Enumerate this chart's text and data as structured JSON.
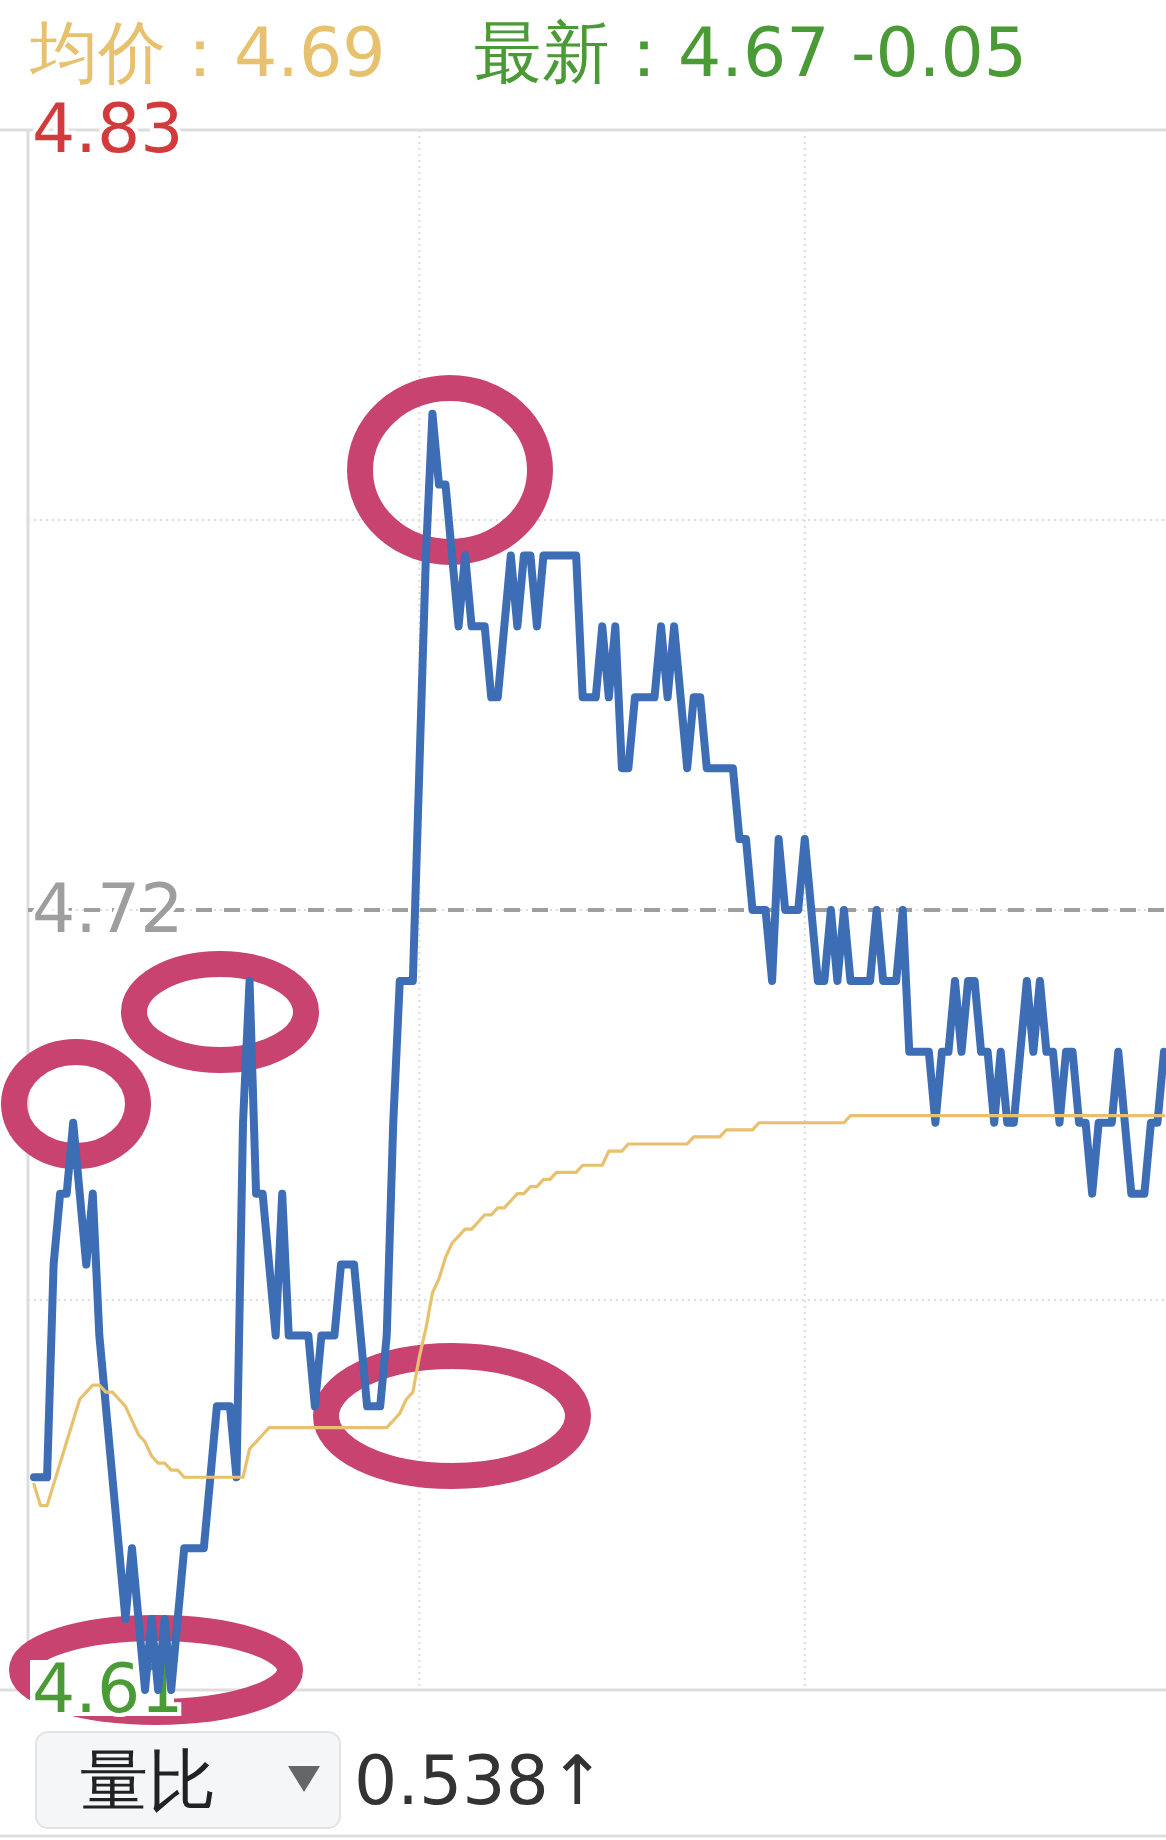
{
  "chart_data": {
    "type": "line",
    "annotations": [
      "均价：4.69",
      "最新：4.67 -0.05",
      "量比",
      "0.538↑"
    ],
    "categories": [
      null,
      null,
      null,
      null,
      null,
      null,
      null,
      null,
      null,
      null,
      null,
      null,
      null,
      null,
      null,
      null,
      null,
      null,
      null,
      null,
      null,
      null,
      null,
      null,
      null,
      null,
      null,
      null,
      null,
      null,
      null,
      null,
      null,
      null,
      null,
      null,
      null,
      null,
      null,
      null,
      null,
      null,
      null,
      null,
      null,
      null,
      null,
      null,
      null,
      null,
      null,
      null,
      null,
      null,
      null,
      null,
      null,
      null,
      null,
      null,
      null,
      null,
      null,
      null,
      null,
      null,
      null,
      null,
      null,
      null,
      null,
      null,
      null,
      null,
      null,
      null,
      null,
      null,
      null,
      null,
      null,
      null,
      null,
      null,
      null,
      null,
      null,
      null,
      null,
      null,
      null,
      null,
      null,
      null,
      null,
      null,
      null,
      null,
      null,
      null,
      null,
      null,
      null,
      null,
      null,
      null,
      null,
      null,
      null,
      null,
      null,
      null,
      null,
      null,
      null,
      null,
      null,
      null,
      null,
      null,
      null,
      null,
      null,
      null,
      null,
      null,
      null,
      null,
      null,
      null,
      null,
      null,
      null,
      null,
      null,
      null,
      null,
      null,
      null,
      null,
      null,
      null,
      null,
      null,
      null,
      null,
      null,
      null,
      null,
      null,
      null,
      null,
      null,
      null,
      null,
      null,
      null,
      null,
      null,
      null,
      null,
      null,
      null,
      null,
      null,
      null,
      null,
      null,
      null,
      null,
      null,
      null,
      null,
      null
    ],
    "ylim": [
      4.61,
      4.83
    ],
    "yticks": [
      4.61,
      {
        "value": 4.665,
        "label": null
      },
      4.72,
      {
        "value": 4.775,
        "label": null
      },
      4.83
    ],
    "tick_labels": "y",
    "grid": true,
    "line_style": "solid",
    "ref_lines": [
      {
        "axis": "y",
        "value": 4.72,
        "color": "#9e9e9e",
        "line_style": "dashed"
      }
    ],
    "series": [
      {
        "color": "#3d6db5",
        "values": [
          4.64,
          4.64,
          4.64,
          4.67,
          4.68,
          4.68,
          4.69,
          4.68,
          4.67,
          4.68,
          4.66,
          4.65,
          4.64,
          4.63,
          4.62,
          4.63,
          4.62,
          4.61,
          4.62,
          4.61,
          4.62,
          4.61,
          4.62,
          4.63,
          4.63,
          4.63,
          4.63,
          4.64,
          4.65,
          4.65,
          4.65,
          4.64,
          4.69,
          4.71,
          4.68,
          4.68,
          4.67,
          4.66,
          4.68,
          4.66,
          4.66,
          4.66,
          4.66,
          4.65,
          4.66,
          4.66,
          4.66,
          4.67,
          4.67,
          4.67,
          4.66,
          4.65,
          4.65,
          4.65,
          4.66,
          4.69,
          4.71,
          4.71,
          4.71,
          4.74,
          4.77,
          4.79,
          4.78,
          4.78,
          4.77,
          4.76,
          4.77,
          4.76,
          4.76,
          4.76,
          4.75,
          4.75,
          4.76,
          4.77,
          4.76,
          4.77,
          4.77,
          4.76,
          4.77,
          4.77,
          4.77,
          4.77,
          4.77,
          4.77,
          4.75,
          4.75,
          4.75,
          4.76,
          4.75,
          4.76,
          4.74,
          4.74,
          4.75,
          4.75,
          4.75,
          4.75,
          4.76,
          4.75,
          4.76,
          4.75,
          4.74,
          4.75,
          4.75,
          4.74,
          4.74,
          4.74,
          4.74,
          4.74,
          4.73,
          4.73,
          4.72,
          4.72,
          4.72,
          4.71,
          4.73,
          4.72,
          4.72,
          4.72,
          4.73,
          4.72,
          4.71,
          4.71,
          4.72,
          4.71,
          4.72,
          4.71,
          4.71,
          4.71,
          4.71,
          4.72,
          4.71,
          4.71,
          4.71,
          4.72,
          4.7,
          4.7,
          4.7,
          4.7,
          4.69,
          4.7,
          4.7,
          4.71,
          4.7,
          4.71,
          4.71,
          4.7,
          4.7,
          4.69,
          4.7,
          4.69,
          4.69,
          4.7,
          4.71,
          4.7,
          4.71,
          4.7,
          4.7,
          4.69,
          4.7,
          4.7,
          4.69,
          4.69,
          4.68,
          4.69,
          4.69,
          4.69,
          4.7,
          4.69,
          4.68,
          4.68,
          4.68,
          4.69,
          4.69,
          4.7
        ]
      },
      {
        "color": "#e8c16e",
        "values": [
          4.639,
          4.636,
          4.636,
          4.639,
          4.642,
          4.645,
          4.648,
          4.651,
          4.652,
          4.653,
          4.653,
          4.652,
          4.652,
          4.651,
          4.65,
          4.648,
          4.646,
          4.645,
          4.643,
          4.642,
          4.642,
          4.641,
          4.641,
          4.64,
          4.64,
          4.64,
          4.64,
          4.64,
          4.64,
          4.64,
          4.64,
          4.64,
          4.64,
          4.644,
          4.645,
          4.646,
          4.647,
          4.647,
          4.647,
          4.647,
          4.647,
          4.647,
          4.647,
          4.647,
          4.647,
          4.647,
          4.647,
          4.647,
          4.647,
          4.647,
          4.647,
          4.647,
          4.647,
          4.647,
          4.647,
          4.648,
          4.649,
          4.651,
          4.652,
          4.657,
          4.661,
          4.666,
          4.668,
          4.671,
          4.673,
          4.674,
          4.675,
          4.675,
          4.676,
          4.677,
          4.677,
          4.678,
          4.678,
          4.679,
          4.68,
          4.68,
          4.681,
          4.681,
          4.682,
          4.682,
          4.683,
          4.683,
          4.683,
          4.683,
          4.684,
          4.684,
          4.684,
          4.684,
          4.686,
          4.686,
          4.686,
          4.687,
          4.687,
          4.687,
          4.687,
          4.687,
          4.687,
          4.687,
          4.687,
          4.687,
          4.687,
          4.688,
          4.688,
          4.688,
          4.688,
          4.688,
          4.689,
          4.689,
          4.689,
          4.689,
          4.689,
          4.69,
          4.69,
          4.69,
          4.69,
          4.69,
          4.69,
          4.69,
          4.69,
          4.69,
          4.69,
          4.69,
          4.69,
          4.69,
          4.69,
          4.691,
          4.691,
          4.691,
          4.691,
          4.691,
          4.691,
          4.691,
          4.691,
          4.691,
          4.691,
          4.691,
          4.691,
          4.691,
          4.691,
          4.691,
          4.691,
          4.691,
          4.691,
          4.691,
          4.691,
          4.691,
          4.691,
          4.691,
          4.691,
          4.691,
          4.691,
          4.691,
          4.691,
          4.691,
          4.691,
          4.691,
          4.691,
          4.691,
          4.691,
          4.691,
          4.691,
          4.691,
          4.691,
          4.691,
          4.691,
          4.691,
          4.691,
          4.691,
          4.691,
          4.691,
          4.691,
          4.691,
          4.691,
          4.691
        ]
      }
    ]
  }
}
